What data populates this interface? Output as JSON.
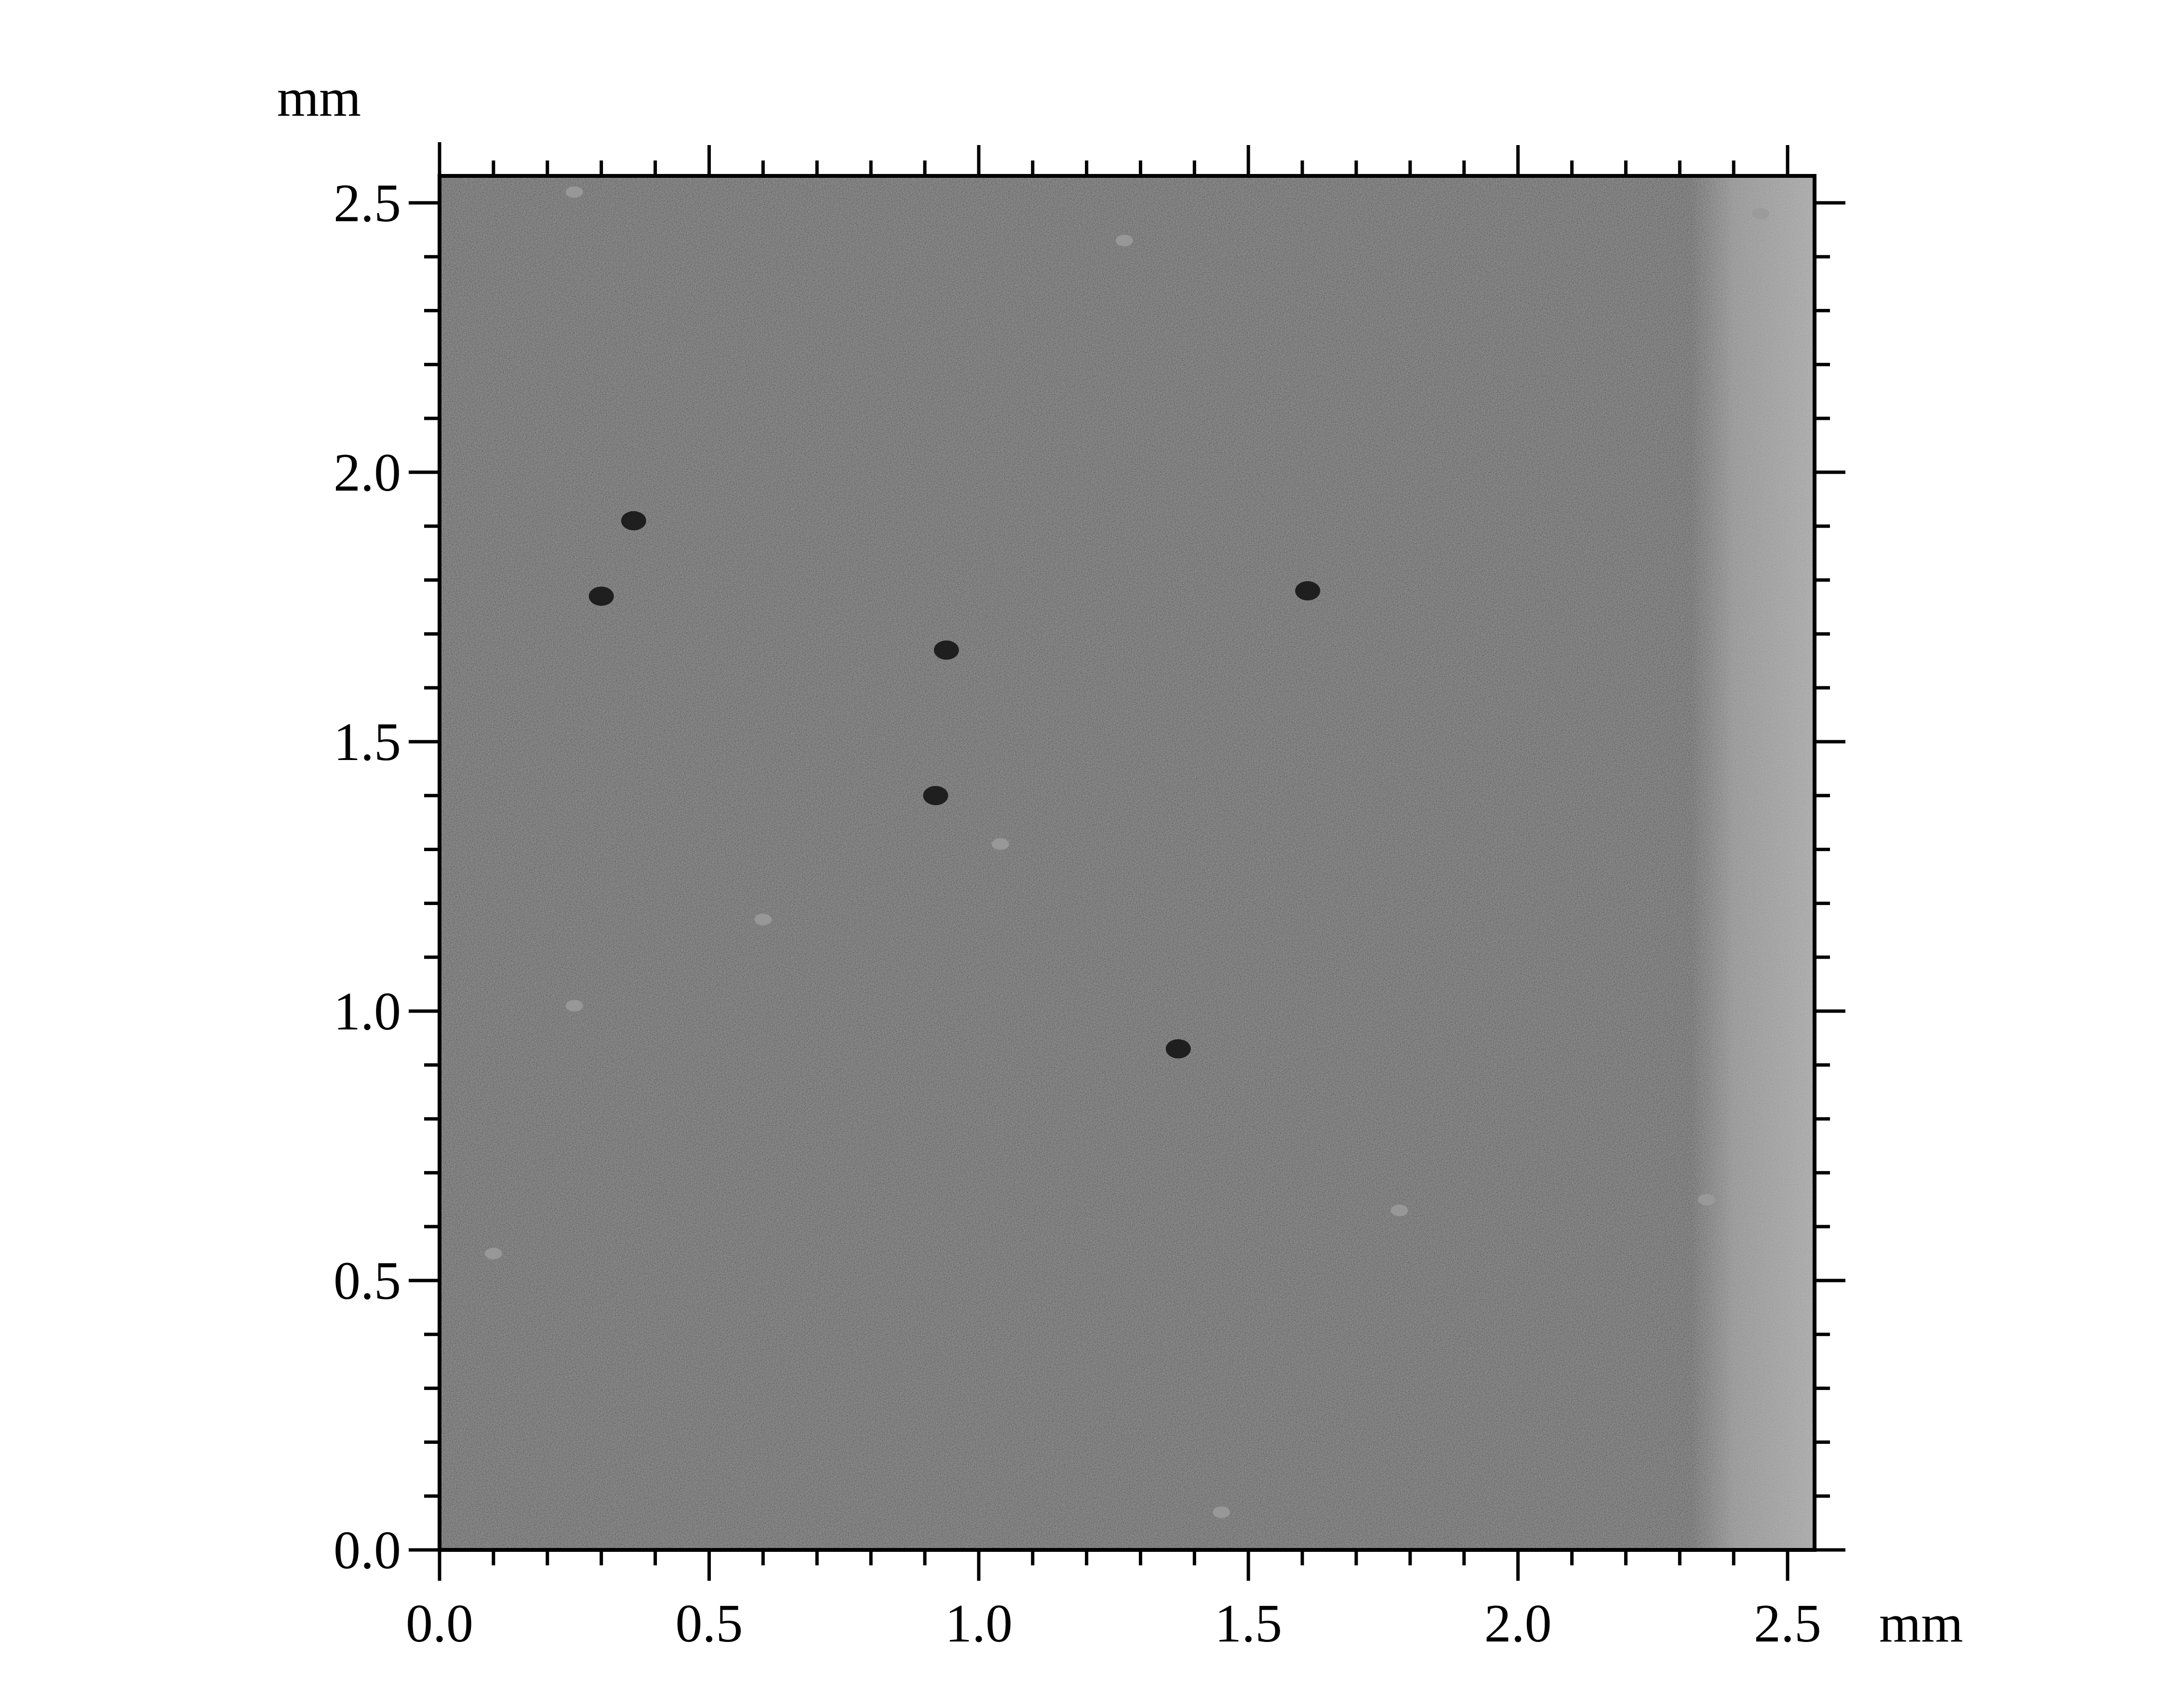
{
  "chart_data": {
    "type": "heatmap",
    "title": "",
    "xlabel": "",
    "ylabel": "",
    "x_unit": "mm",
    "y_unit": "mm",
    "xlim": [
      0.0,
      2.55
    ],
    "ylim": [
      0.0,
      2.55
    ],
    "x_ticks": [
      0.0,
      0.5,
      1.0,
      1.5,
      2.0,
      2.5
    ],
    "y_ticks": [
      0.0,
      0.5,
      1.0,
      1.5,
      2.0,
      2.5
    ],
    "x_tick_labels": [
      "0.0",
      "0.5",
      "1.0",
      "1.5",
      "2.0",
      "2.5"
    ],
    "y_tick_labels": [
      "0.0",
      "0.5",
      "1.0",
      "1.5",
      "2.0",
      "2.5"
    ],
    "x_minor_step": 0.1,
    "y_minor_step": 0.1,
    "grid": false,
    "colormap": "grayscale",
    "image_description_colors": {
      "base": "#3c3c3c",
      "dark_speckle": "#0e0e0e",
      "light_speckle": "#9a9a9a",
      "right_edge_band": "#7a7a7a"
    },
    "right_band_x_start": 2.32
  }
}
